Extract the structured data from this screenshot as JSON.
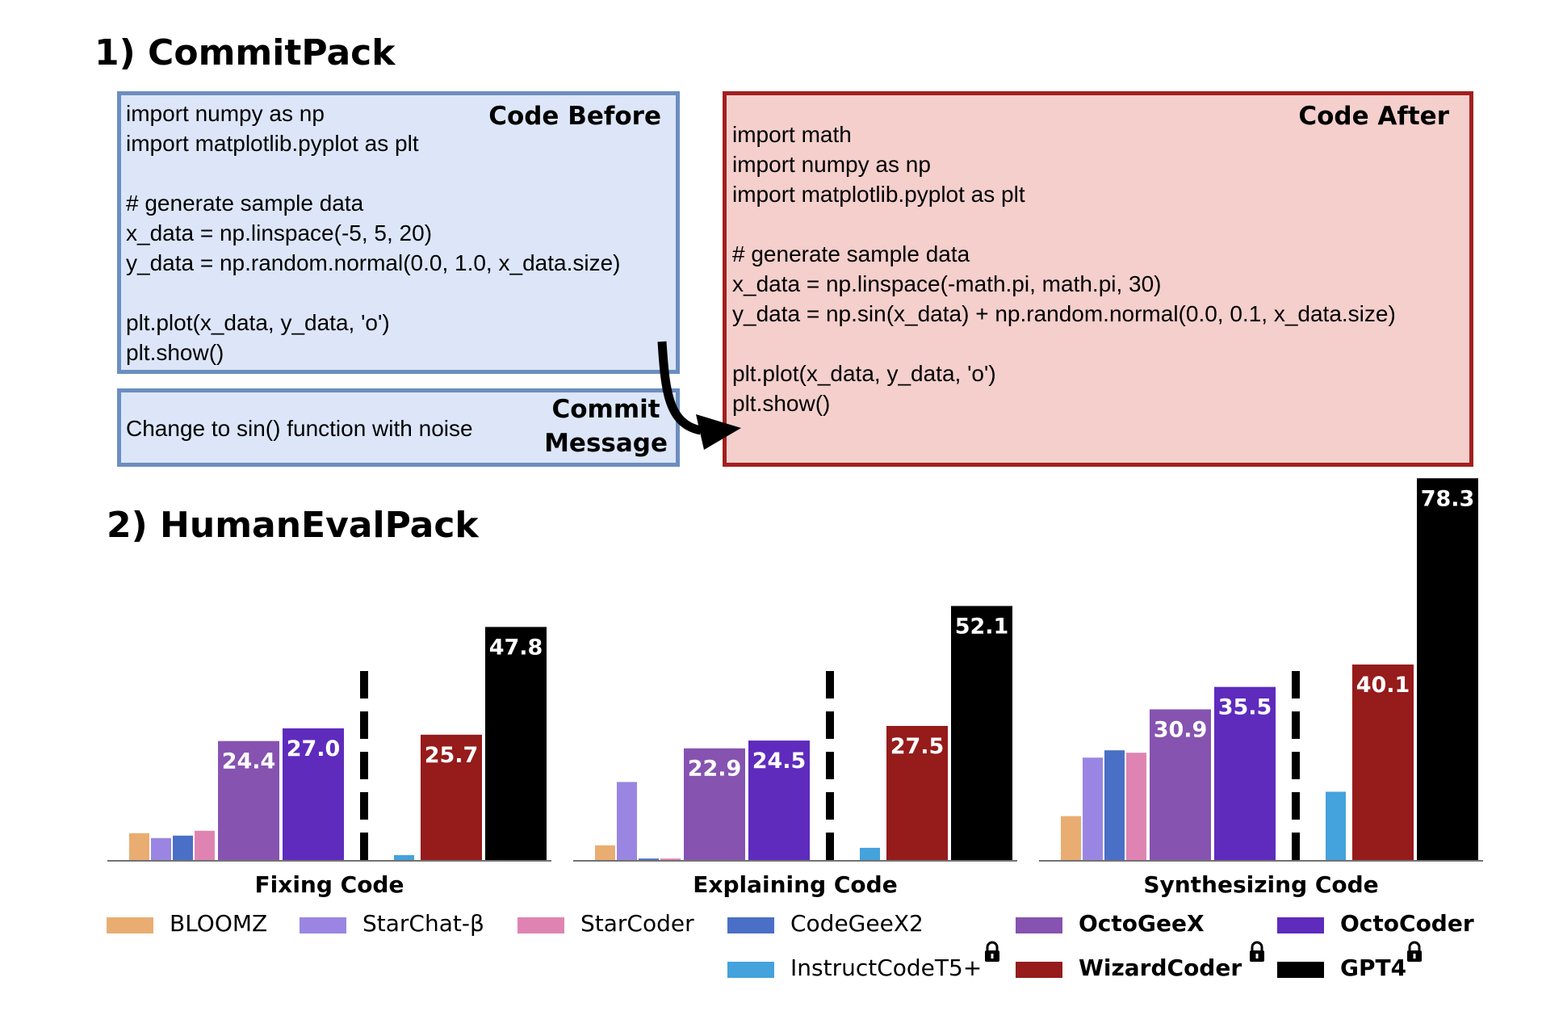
{
  "section1": {
    "title": "1) CommitPack",
    "code_before": {
      "label": "Code Before",
      "code": "import numpy as np\nimport matplotlib.pyplot as plt\n\n# generate sample data\nx_data = np.linspace(-5, 5, 20)\ny_data = np.random.normal(0.0, 1.0, x_data.size)\n\nplt.plot(x_data, y_data, 'o')\nplt.show()"
    },
    "commit_message": {
      "label_line1": "Commit",
      "label_line2": "Message",
      "text": "Change to sin() function with noise"
    },
    "code_after": {
      "label": "Code After",
      "code": "import math\nimport numpy as np\nimport matplotlib.pyplot as plt\n\n# generate sample data\nx_data = np.linspace(-math.pi, math.pi, 30)\ny_data = np.sin(x_data) + np.random.normal(0.0, 0.1, x_data.size)\n\nplt.plot(x_data, y_data, 'o')\nplt.show()"
    }
  },
  "section2": {
    "title": "2) HumanEvalPack"
  },
  "legend": [
    {
      "name": "BLOOMZ",
      "color": "#e9ad72",
      "bold": false,
      "lock": false
    },
    {
      "name": "StarChat-β",
      "color": "#9a86e2",
      "bold": false,
      "lock": false
    },
    {
      "name": "StarCoder",
      "color": "#df84b2",
      "bold": false,
      "lock": false
    },
    {
      "name": "CodeGeeX2",
      "color": "#4a6fc6",
      "bold": false,
      "lock": false
    },
    {
      "name": "OctoGeeX",
      "color": "#8653b0",
      "bold": true,
      "lock": false
    },
    {
      "name": "OctoCoder",
      "color": "#5e2bbd",
      "bold": true,
      "lock": false
    },
    {
      "name": "InstructCodeT5+",
      "color": "#44a2dc",
      "bold": false,
      "lock": true
    },
    {
      "name": "WizardCoder",
      "color": "#961b1b",
      "bold": true,
      "lock": true
    },
    {
      "name": "GPT4",
      "color": "#000000",
      "bold": true,
      "lock": true
    }
  ],
  "chart_data": [
    {
      "type": "bar",
      "title": "Fixing Code",
      "categories": [
        "BLOOMZ",
        "StarChat-β",
        "CodeGeeX2",
        "StarCoder",
        "OctoGeeX",
        "OctoCoder",
        "InstructCodeT5+",
        "WizardCoder",
        "GPT4"
      ],
      "values": [
        5.5,
        4.5,
        5.0,
        6.0,
        24.4,
        27.0,
        1.0,
        25.7,
        47.8
      ],
      "labels": [
        "",
        "",
        "",
        "",
        "24.4",
        "27.0",
        "",
        "25.7",
        "47.8"
      ],
      "ylim": [
        0,
        80
      ]
    },
    {
      "type": "bar",
      "title": "Explaining Code",
      "categories": [
        "BLOOMZ",
        "StarChat-β",
        "CodeGeeX2",
        "StarCoder",
        "OctoGeeX",
        "OctoCoder",
        "InstructCodeT5+",
        "WizardCoder",
        "GPT4"
      ],
      "values": [
        3.0,
        16.0,
        0.3,
        0.3,
        22.9,
        24.5,
        2.5,
        27.5,
        52.1
      ],
      "labels": [
        "",
        "",
        "",
        "",
        "22.9",
        "24.5",
        "",
        "27.5",
        "52.1"
      ],
      "ylim": [
        0,
        80
      ]
    },
    {
      "type": "bar",
      "title": "Synthesizing Code",
      "categories": [
        "BLOOMZ",
        "StarChat-β",
        "CodeGeeX2",
        "StarCoder",
        "OctoGeeX",
        "OctoCoder",
        "InstructCodeT5+",
        "WizardCoder",
        "GPT4"
      ],
      "values": [
        9.0,
        21.0,
        22.5,
        22.0,
        30.9,
        35.5,
        14.0,
        40.1,
        78.3
      ],
      "labels": [
        "",
        "",
        "",
        "",
        "30.9",
        "35.5",
        "",
        "40.1",
        "78.3"
      ],
      "ylim": [
        0,
        80
      ]
    }
  ]
}
